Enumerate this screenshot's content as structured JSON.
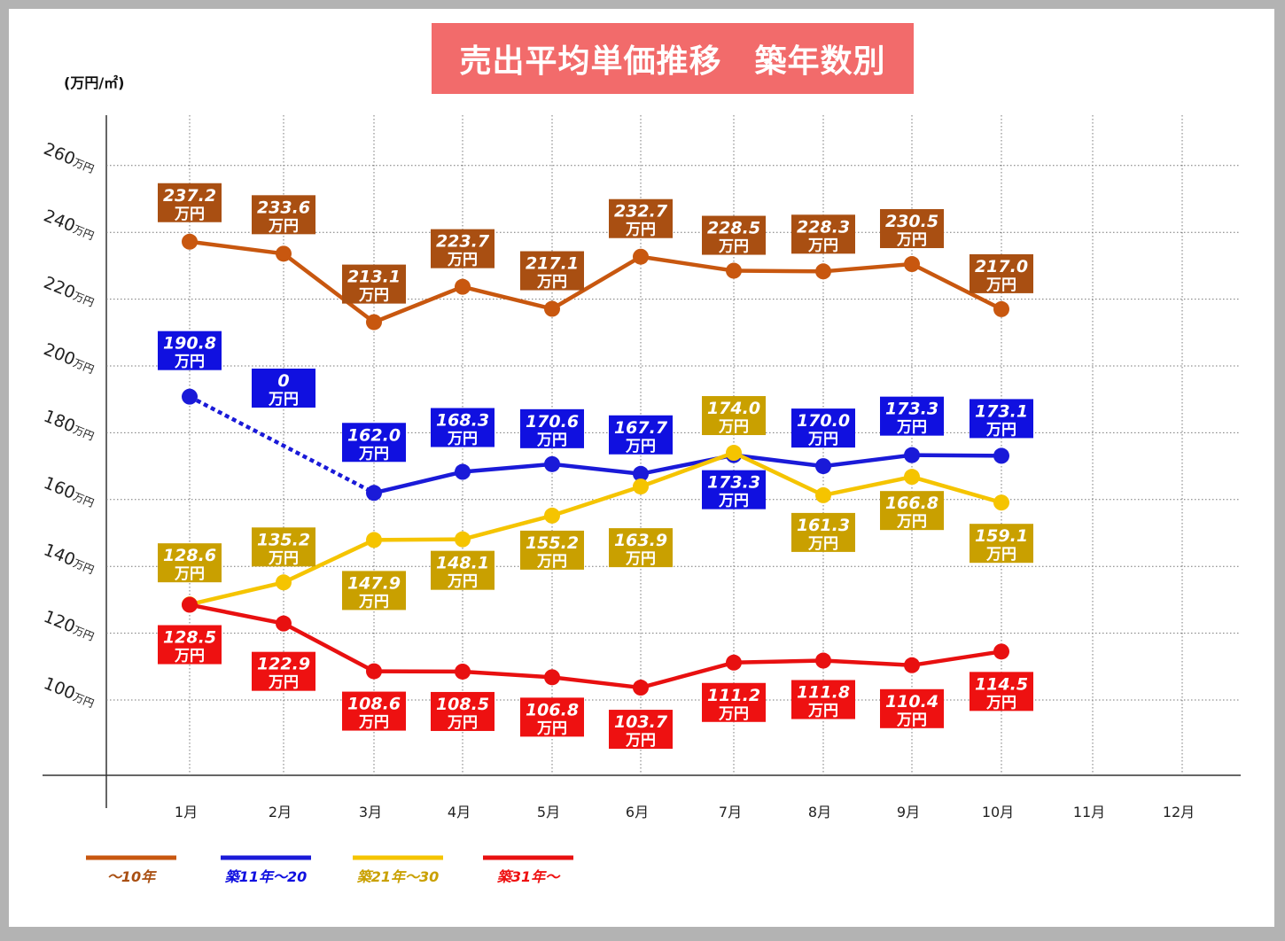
{
  "title": "売出平均単価推移　築年数別",
  "unit_label": "(万円/㎡)",
  "value_unit": "万円",
  "chart_data": {
    "type": "line",
    "title": "売出平均単価推移　築年数別",
    "ylabel": "(万円/㎡)",
    "xlabel": "",
    "categories": [
      "1月",
      "2月",
      "3月",
      "4月",
      "5月",
      "6月",
      "7月",
      "8月",
      "9月",
      "10月",
      "11月",
      "12月"
    ],
    "y_ticks": [
      "260",
      "240",
      "220",
      "200",
      "180",
      "160",
      "140",
      "120",
      "100"
    ],
    "y_tick_unit": "万円",
    "grid": true,
    "legend_position": "bottom-left",
    "series": [
      {
        "name": "～10年",
        "color": "#c8570f",
        "label_color": "#a94f12",
        "values": [
          237.2,
          233.6,
          213.1,
          223.7,
          217.1,
          232.7,
          228.5,
          228.3,
          230.5,
          217.0,
          null,
          null
        ],
        "labels": [
          "237.2",
          "233.6",
          "213.1",
          "223.7",
          "217.1",
          "232.7",
          "228.5",
          "228.3",
          "230.5",
          "217.0",
          null,
          null
        ]
      },
      {
        "name": "築11年～20",
        "color": "#1a1ad8",
        "label_color": "#1010e0",
        "values": [
          190.8,
          null,
          162.0,
          168.3,
          170.6,
          167.7,
          173.3,
          170.0,
          173.3,
          173.1,
          null,
          null
        ],
        "labels": [
          "190.8",
          "0",
          "162.0",
          "168.3",
          "170.6",
          "167.7",
          "173.3",
          "170.0",
          "173.3",
          "173.1",
          null,
          null
        ],
        "dashed_gap": true
      },
      {
        "name": "築21年～30",
        "color": "#f5c400",
        "label_color": "#c9a000",
        "values": [
          128.6,
          135.2,
          147.9,
          148.1,
          155.2,
          163.9,
          174.0,
          161.3,
          166.8,
          159.1,
          null,
          null
        ],
        "labels": [
          "128.6",
          "135.2",
          "147.9",
          "148.1",
          "155.2",
          "163.9",
          "174.0",
          "161.3",
          "166.8",
          "159.1",
          null,
          null
        ]
      },
      {
        "name": "築31年～",
        "color": "#e81010",
        "label_color": "#ee1111",
        "values": [
          128.5,
          122.9,
          108.6,
          108.5,
          106.8,
          103.7,
          111.2,
          111.8,
          110.4,
          114.5,
          null,
          null
        ],
        "labels": [
          "128.5",
          "122.9",
          "108.6",
          "108.5",
          "106.8",
          "103.7",
          "111.2",
          "111.8",
          "110.4",
          "114.5",
          null,
          null
        ]
      }
    ]
  }
}
